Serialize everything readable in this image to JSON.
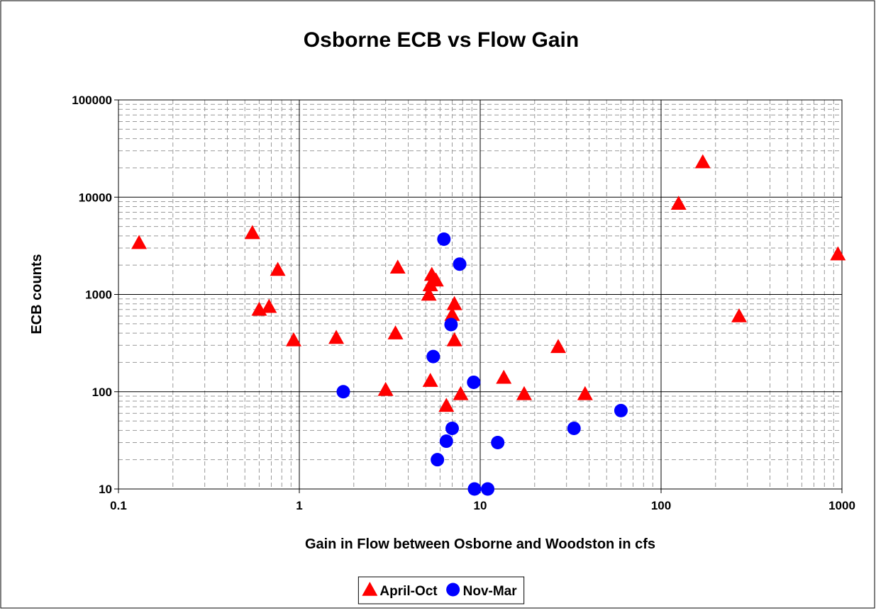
{
  "chart_data": {
    "type": "scatter",
    "title": "Osborne ECB vs Flow Gain",
    "x_label": "Gain in Flow between Osborne and Woodston in cfs",
    "y_label": "ECB counts",
    "x_log": true,
    "y_log": true,
    "grid": true,
    "legend": "bottom",
    "xlim": [
      0.1,
      1000
    ],
    "xticks": [
      0.1,
      1,
      10,
      100,
      1000
    ],
    "ylim": [
      10,
      100000
    ],
    "yticks": [
      10,
      100,
      1000,
      10000,
      100000
    ],
    "series": [
      {
        "name": "April-Oct",
        "color": "#ff0000",
        "marker": "triangle",
        "x": [
          0.13,
          0.55,
          0.6,
          0.68,
          0.76,
          0.93,
          1.6,
          3.0,
          3.4,
          3.5,
          5.2,
          5.3,
          5.4,
          5.7,
          5.3,
          6.5,
          7.0,
          7.2,
          7.2,
          7.8,
          13.5,
          17.5,
          27,
          38,
          125,
          170,
          270,
          950
        ],
        "values": [
          3400,
          4300,
          700,
          750,
          1800,
          340,
          360,
          105,
          400,
          1900,
          1000,
          1250,
          1600,
          1400,
          130,
          72,
          620,
          800,
          340,
          95,
          140,
          95,
          290,
          95,
          8600,
          23000,
          600,
          2600
        ]
      },
      {
        "name": "Nov-Mar",
        "color": "#0000ff",
        "marker": "circle",
        "x": [
          1.75,
          5.5,
          5.8,
          6.3,
          6.5,
          6.9,
          7.0,
          7.7,
          9.2,
          9.3,
          11,
          12.5,
          33,
          60
        ],
        "values": [
          100,
          230,
          20,
          3700,
          31,
          490,
          42,
          2050,
          125,
          10,
          10,
          30,
          42,
          64
        ]
      }
    ]
  }
}
